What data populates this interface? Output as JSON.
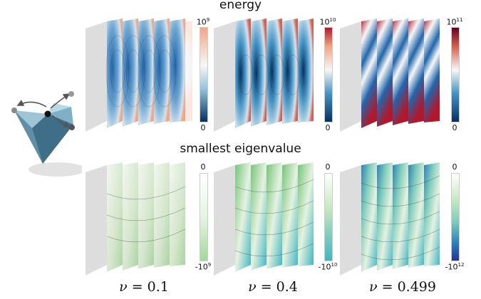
{
  "rows": [
    {
      "title": "energy",
      "panels": [
        {
          "colorbar_top_base": "10",
          "colorbar_top_exp": "9",
          "colorbar_bottom": "0"
        },
        {
          "colorbar_top_base": "10",
          "colorbar_top_exp": "10",
          "colorbar_bottom": "0"
        },
        {
          "colorbar_top_base": "10",
          "colorbar_top_exp": "11",
          "colorbar_bottom": "0"
        }
      ]
    },
    {
      "title": "smallest eigenvalue",
      "panels": [
        {
          "colorbar_top": "0",
          "colorbar_bottom_base": "-10",
          "colorbar_bottom_exp": "9"
        },
        {
          "colorbar_top": "0",
          "colorbar_bottom_base": "-10",
          "colorbar_bottom_exp": "10"
        },
        {
          "colorbar_top": "0",
          "colorbar_bottom_base": "-10",
          "colorbar_bottom_exp": "12"
        }
      ]
    }
  ],
  "columns": [
    {
      "symbol": "ν",
      "equals": " = ",
      "value": "0.1"
    },
    {
      "symbol": "ν",
      "equals": " = ",
      "value": "0.4"
    },
    {
      "symbol": "ν",
      "equals": " = ",
      "value": "0.499"
    }
  ],
  "colors": {
    "energy_high": "#b2182b",
    "energy_mid": "#f7f7f7",
    "energy_low": "#2166ac",
    "eig_top": "#f7fcf5",
    "eig_mid": "#74c476",
    "eig_low": "#2c7fb8"
  }
}
